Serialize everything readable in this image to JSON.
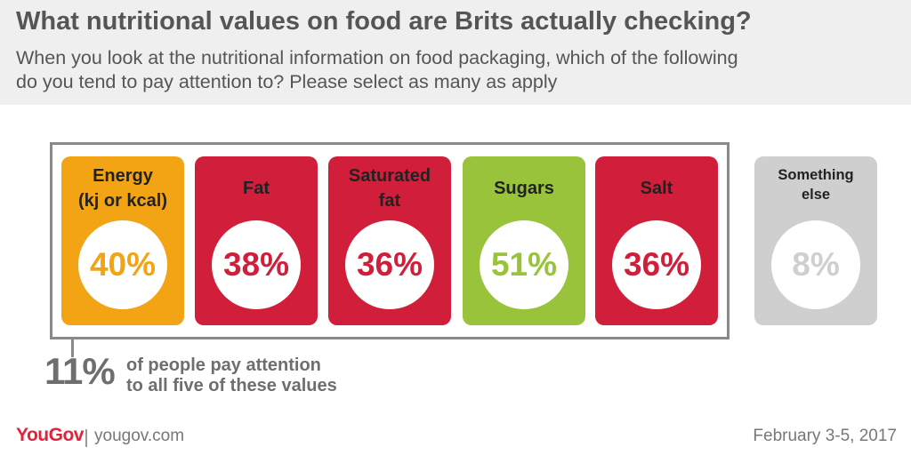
{
  "title": "What nutritional values on food are Brits actually checking?",
  "subtitle_line1": "When you look at the nutritional information on food packaging, which of the following",
  "subtitle_line2": "do you tend to pay attention to? Please select as many as apply",
  "chart_data": {
    "type": "bar",
    "title": "What nutritional values on food are Brits actually checking?",
    "categories": [
      "Energy (kj or kcal)",
      "Fat",
      "Saturated fat",
      "Sugars",
      "Salt",
      "Something else"
    ],
    "values": [
      40,
      38,
      36,
      51,
      36,
      8
    ],
    "unit": "%",
    "cards": [
      {
        "line1": "Energy",
        "line2": "(kj or kcal)",
        "value_label": "40%",
        "color": "#f2a414",
        "text_color": "#f2a414",
        "small": false
      },
      {
        "line1": "Fat",
        "line2": "",
        "value_label": "38%",
        "color": "#d11f3b",
        "text_color": "#d11f3b",
        "small": false
      },
      {
        "line1": "Saturated",
        "line2": "fat",
        "value_label": "36%",
        "color": "#d11f3b",
        "text_color": "#d11f3b",
        "small": false
      },
      {
        "line1": "Sugars",
        "line2": "",
        "value_label": "51%",
        "color": "#98c33a",
        "text_color": "#98c33a",
        "small": false
      },
      {
        "line1": "Salt",
        "line2": "",
        "value_label": "36%",
        "color": "#d11f3b",
        "text_color": "#d11f3b",
        "small": false
      },
      {
        "line1": "Something",
        "line2": "else",
        "value_label": "8%",
        "color": "#cfcfcf",
        "text_color": "#cfcfcf",
        "small": true
      }
    ]
  },
  "summary": {
    "value": "11%",
    "line1": "of people pay attention",
    "line2": "to all five of these values"
  },
  "footer": {
    "logo": "YouGov",
    "site": "yougov.com",
    "date": "February 3-5, 2017"
  }
}
